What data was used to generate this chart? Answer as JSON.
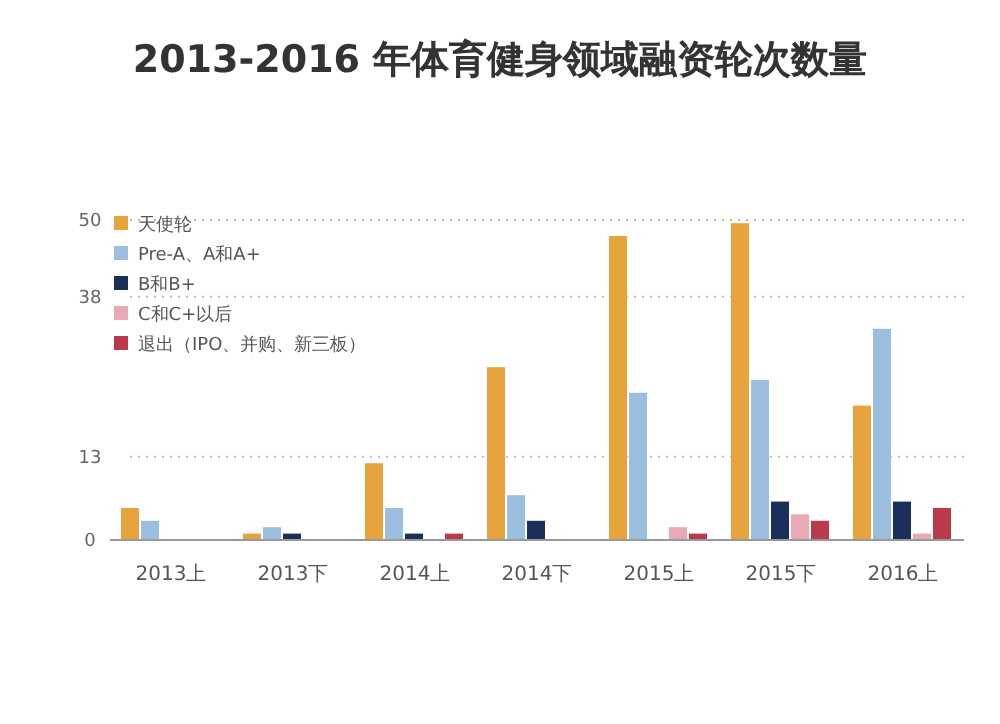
{
  "chart_data": {
    "type": "bar",
    "title": "2013-2016 年体育健身领域融资轮次数量",
    "categories": [
      "2013上",
      "2013下",
      "2014上",
      "2014下",
      "2015上",
      "2015下",
      "2016上"
    ],
    "series": [
      {
        "name": "天使轮",
        "color": "#e8a43c",
        "values": [
          5,
          1,
          12,
          27,
          47.5,
          49.5,
          21
        ]
      },
      {
        "name": "Pre-A、A和A+",
        "color": "#9dbfdf",
        "values": [
          3,
          2,
          5,
          7,
          23,
          25,
          33
        ]
      },
      {
        "name": "B和B+",
        "color": "#1c2f5a",
        "values": [
          0,
          1,
          1,
          3,
          null,
          6,
          6
        ]
      },
      {
        "name": "C和C+以后",
        "color": "#e8a9b4",
        "values": [
          0,
          0,
          0,
          0,
          2,
          4,
          1
        ]
      },
      {
        "name": "退出（IPO、并购、新三板）",
        "color": "#b83a4b",
        "values": [
          0,
          0,
          1,
          0,
          1,
          3,
          5
        ]
      }
    ],
    "ylim": [
      0,
      50
    ],
    "yticks": [
      0,
      13,
      38,
      50
    ],
    "grid": "y",
    "legend": "top left"
  }
}
